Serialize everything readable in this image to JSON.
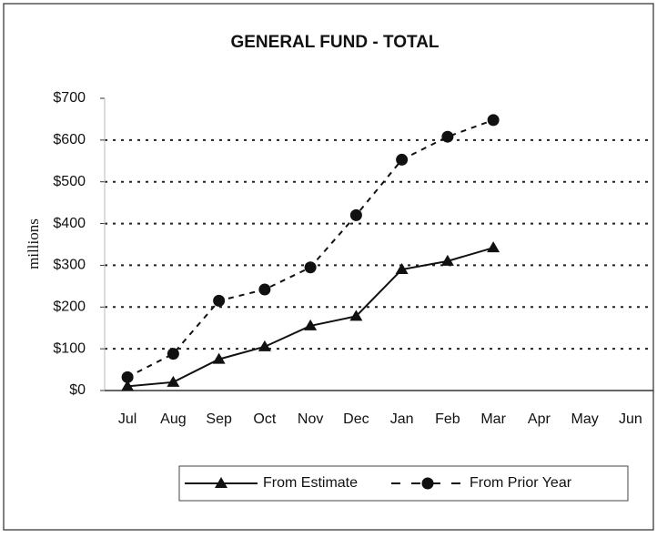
{
  "chart_data": {
    "type": "line",
    "title": "GENERAL FUND - TOTAL",
    "y_label": "millions",
    "categories": [
      "Jul",
      "Aug",
      "Sep",
      "Oct",
      "Nov",
      "Dec",
      "Jan",
      "Feb",
      "Mar",
      "Apr",
      "May",
      "Jun"
    ],
    "series": [
      {
        "name": "From Estimate",
        "color": "#111111",
        "line": "solid",
        "marker": "triangle",
        "values": [
          10,
          20,
          75,
          105,
          155,
          178,
          290,
          310,
          342,
          null,
          null,
          null
        ]
      },
      {
        "name": "From Prior Year",
        "color": "#111111",
        "line": "dashed",
        "marker": "circle",
        "values": [
          32,
          88,
          215,
          242,
          295,
          420,
          553,
          608,
          648,
          null,
          null,
          null
        ]
      }
    ],
    "ylim": [
      0,
      700
    ],
    "yticks": [
      {
        "value": 0,
        "label": "$0"
      },
      {
        "value": 100,
        "label": "$100"
      },
      {
        "value": 200,
        "label": "$200"
      },
      {
        "value": 300,
        "label": "$300"
      },
      {
        "value": 400,
        "label": "$400"
      },
      {
        "value": 500,
        "label": "$500"
      },
      {
        "value": 600,
        "label": "$600"
      },
      {
        "value": 700,
        "label": "$700"
      }
    ],
    "grid": true,
    "legend": "bottom"
  }
}
